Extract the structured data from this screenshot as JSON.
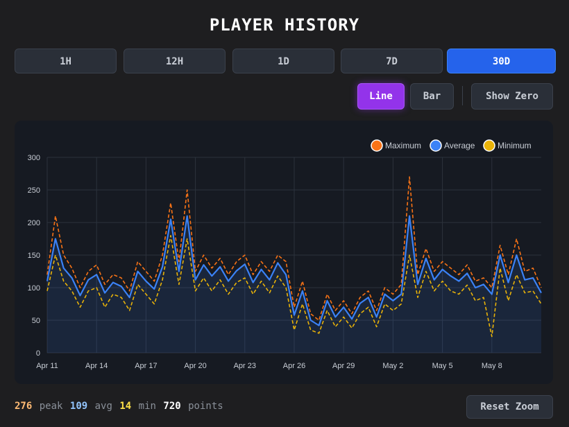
{
  "header": {
    "title": "PLAYER HISTORY"
  },
  "ranges": [
    {
      "label": "1H",
      "active": false
    },
    {
      "label": "12H",
      "active": false
    },
    {
      "label": "1D",
      "active": false
    },
    {
      "label": "7D",
      "active": false
    },
    {
      "label": "30D",
      "active": true
    }
  ],
  "modes": {
    "line": "Line",
    "bar": "Bar",
    "show_zero": "Show Zero",
    "active": "line"
  },
  "stats": {
    "peak_value": "276",
    "peak_label": "peak",
    "avg_value": "109",
    "avg_label": "avg",
    "min_value": "14",
    "min_label": "min",
    "points_value": "720",
    "points_label": "points"
  },
  "reset_label": "Reset Zoom",
  "colors": {
    "maximum": "#f97316",
    "average": "#3b82f6",
    "minimum": "#eab308",
    "active_range": "#2563eb",
    "active_mode": "#9333ea"
  },
  "chart_data": {
    "type": "line",
    "title": "",
    "xlabel": "",
    "ylabel": "",
    "ylim": [
      0,
      300
    ],
    "yticks": [
      0,
      50,
      100,
      150,
      200,
      250,
      300
    ],
    "xlim": [
      "Apr 11",
      "May 11"
    ],
    "xticks": [
      "Apr 11",
      "Apr 14",
      "Apr 17",
      "Apr 20",
      "Apr 23",
      "Apr 26",
      "Apr 29",
      "May 2",
      "May 5",
      "May 8"
    ],
    "grid": true,
    "legend": "top-right",
    "x": [
      "Apr 11",
      "Apr 11 12h",
      "Apr 12",
      "Apr 12 12h",
      "Apr 13",
      "Apr 13 12h",
      "Apr 14",
      "Apr 14 12h",
      "Apr 15",
      "Apr 15 12h",
      "Apr 16",
      "Apr 16 12h",
      "Apr 17",
      "Apr 17 12h",
      "Apr 18",
      "Apr 18 12h",
      "Apr 19",
      "Apr 19 12h",
      "Apr 20",
      "Apr 20 12h",
      "Apr 21",
      "Apr 21 12h",
      "Apr 22",
      "Apr 22 12h",
      "Apr 23",
      "Apr 23 12h",
      "Apr 24",
      "Apr 24 12h",
      "Apr 25",
      "Apr 25 12h",
      "Apr 26",
      "Apr 26 12h",
      "Apr 27",
      "Apr 27 12h",
      "Apr 28",
      "Apr 28 12h",
      "Apr 29",
      "Apr 29 12h",
      "Apr 30",
      "Apr 30 12h",
      "May 1",
      "May 1 12h",
      "May 2",
      "May 2 12h",
      "May 3",
      "May 3 12h",
      "May 4",
      "May 4 12h",
      "May 5",
      "May 5 12h",
      "May 6",
      "May 6 12h",
      "May 7",
      "May 7 12h",
      "May 8",
      "May 8 12h",
      "May 9",
      "May 9 12h",
      "May 10",
      "May 10 12h",
      "May 11"
    ],
    "series": [
      {
        "name": "Maximum",
        "color": "#f97316",
        "dashed": true,
        "values": [
          120,
          210,
          150,
          130,
          100,
          125,
          135,
          105,
          120,
          115,
          95,
          140,
          125,
          110,
          150,
          230,
          140,
          250,
          125,
          150,
          130,
          145,
          120,
          140,
          150,
          120,
          140,
          125,
          150,
          140,
          70,
          110,
          60,
          50,
          90,
          65,
          80,
          60,
          85,
          95,
          65,
          100,
          90,
          105,
          270,
          120,
          160,
          125,
          140,
          130,
          120,
          135,
          110,
          115,
          100,
          165,
          120,
          175,
          125,
          130,
          100
        ]
      },
      {
        "name": "Average",
        "color": "#3b82f6",
        "dashed": false,
        "values": [
          110,
          175,
          130,
          115,
          88,
          112,
          120,
          92,
          108,
          102,
          85,
          125,
          110,
          98,
          132,
          205,
          125,
          210,
          112,
          135,
          118,
          132,
          110,
          126,
          136,
          108,
          128,
          112,
          138,
          120,
          58,
          95,
          50,
          42,
          80,
          55,
          70,
          52,
          76,
          85,
          55,
          90,
          80,
          90,
          210,
          105,
          145,
          112,
          128,
          118,
          110,
          122,
          100,
          105,
          90,
          150,
          108,
          150,
          112,
          115,
          92
        ]
      },
      {
        "name": "Minimum",
        "color": "#eab308",
        "dashed": true,
        "values": [
          95,
          150,
          110,
          95,
          70,
          95,
          100,
          70,
          90,
          85,
          65,
          105,
          90,
          75,
          112,
          180,
          105,
          175,
          95,
          115,
          95,
          112,
          90,
          108,
          115,
          90,
          110,
          92,
          118,
          100,
          35,
          75,
          35,
          30,
          65,
          40,
          55,
          38,
          60,
          70,
          40,
          75,
          65,
          75,
          150,
          85,
          125,
          95,
          110,
          95,
          90,
          104,
          80,
          85,
          25,
          130,
          80,
          120,
          92,
          95,
          75
        ]
      }
    ]
  }
}
